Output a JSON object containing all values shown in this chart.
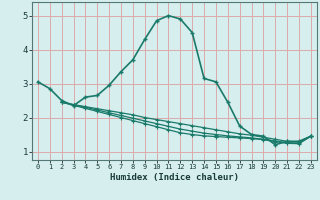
{
  "title": "",
  "xlabel": "Humidex (Indice chaleur)",
  "ylabel": "",
  "bg_color": "#d6eeee",
  "grid_color_v": "#ddaaaa",
  "grid_color_h": "#ddaaaa",
  "line_color": "#1a7a6a",
  "xlim": [
    -0.5,
    23.5
  ],
  "ylim": [
    0.75,
    5.4
  ],
  "xticks": [
    0,
    1,
    2,
    3,
    4,
    5,
    6,
    7,
    8,
    9,
    10,
    11,
    12,
    13,
    14,
    15,
    16,
    17,
    18,
    19,
    20,
    21,
    22,
    23
  ],
  "yticks": [
    1,
    2,
    3,
    4,
    5
  ],
  "curve1_x": [
    0,
    1,
    2,
    3,
    4,
    5,
    6,
    7,
    8,
    9,
    10,
    11,
    12,
    13,
    14,
    15,
    16,
    17,
    18,
    19,
    20,
    21,
    22,
    23
  ],
  "curve1_y": [
    3.05,
    2.85,
    2.5,
    2.35,
    2.6,
    2.65,
    2.95,
    3.35,
    3.7,
    4.3,
    4.85,
    5.0,
    4.9,
    4.5,
    3.15,
    3.05,
    2.45,
    1.75,
    1.5,
    1.45,
    1.2,
    1.3,
    1.3,
    1.45
  ],
  "curve2_x": [
    2,
    3,
    4,
    5,
    6,
    7,
    8,
    9,
    10,
    11,
    12,
    13,
    14,
    15,
    16,
    17,
    18,
    19,
    20,
    21,
    22,
    23
  ],
  "curve2_y": [
    2.45,
    2.38,
    2.32,
    2.26,
    2.2,
    2.14,
    2.08,
    2.0,
    1.94,
    1.88,
    1.82,
    1.76,
    1.7,
    1.64,
    1.58,
    1.52,
    1.48,
    1.42,
    1.36,
    1.3,
    1.28,
    1.45
  ],
  "curve3_x": [
    2,
    3,
    4,
    5,
    6,
    7,
    8,
    9,
    10,
    11,
    12,
    13,
    14,
    15,
    16,
    17,
    18,
    19,
    20,
    21,
    22,
    23
  ],
  "curve3_y": [
    2.45,
    2.38,
    2.3,
    2.22,
    2.14,
    2.06,
    1.98,
    1.9,
    1.82,
    1.74,
    1.66,
    1.6,
    1.54,
    1.5,
    1.46,
    1.43,
    1.4,
    1.36,
    1.31,
    1.26,
    1.25,
    1.45
  ],
  "curve4_x": [
    2,
    3,
    4,
    5,
    6,
    7,
    8,
    9,
    10,
    11,
    12,
    13,
    14,
    15,
    16,
    17,
    18,
    19,
    20,
    21,
    22,
    23
  ],
  "curve4_y": [
    2.45,
    2.36,
    2.27,
    2.18,
    2.09,
    2.0,
    1.91,
    1.82,
    1.73,
    1.64,
    1.55,
    1.5,
    1.46,
    1.44,
    1.42,
    1.4,
    1.38,
    1.35,
    1.29,
    1.24,
    1.23,
    1.45
  ]
}
